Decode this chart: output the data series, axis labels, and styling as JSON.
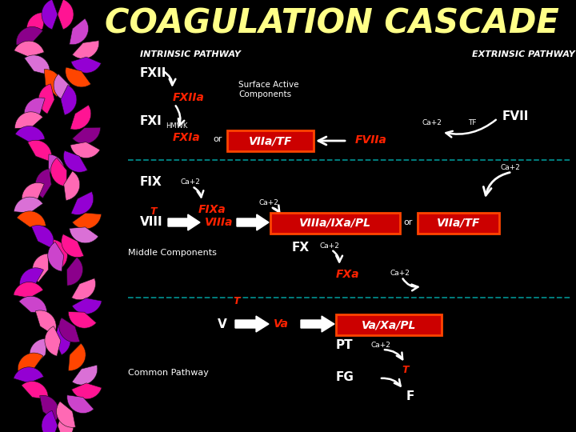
{
  "title": "COAGULATION CASCADE",
  "title_color": "#FFFF88",
  "bg_color": "#000000",
  "red_box_color": "#CC0000",
  "red_box_edge": "#FF4400",
  "red_text": "#FF2200",
  "cyan_line": "#008888",
  "intrinsic_label": "INTRINSIC PATHWAY",
  "extrinsic_label": "EXTRINSIC PATHWAY",
  "middle_label": "Middle Components",
  "common_label": "Common Pathway",
  "dna_colors_a": [
    "#FF1493",
    "#CC44CC",
    "#FF69B4",
    "#9400D3",
    "#FF4500",
    "#DA70D6",
    "#FF1493",
    "#CC44CC",
    "#FF69B4",
    "#9400D3",
    "#FF1493",
    "#CC44CC",
    "#FF69B4",
    "#9400D3",
    "#FF4500",
    "#DA70D6",
    "#FF1493",
    "#CC44CC",
    "#FF69B4",
    "#9400D3",
    "#FF1493",
    "#CC44CC",
    "#FF69B4",
    "#9400D3",
    "#FF4500",
    "#DA70D6",
    "#FF1493",
    "#CC44CC",
    "#FF69B4",
    "#9400D3"
  ],
  "dna_colors_b": [
    "#9400D3",
    "#FF1493",
    "#8B008B",
    "#FF69B4",
    "#DA70D6",
    "#FF4500",
    "#9400D3",
    "#FF1493",
    "#8B008B",
    "#FF69B4",
    "#9400D3",
    "#FF1493",
    "#8B008B",
    "#FF69B4",
    "#DA70D6",
    "#FF4500",
    "#9400D3",
    "#FF1493",
    "#8B008B",
    "#FF69B4",
    "#9400D3",
    "#FF1493",
    "#8B008B",
    "#FF69B4",
    "#DA70D6",
    "#FF4500",
    "#9400D3",
    "#FF1493",
    "#8B008B",
    "#FF69B4"
  ]
}
